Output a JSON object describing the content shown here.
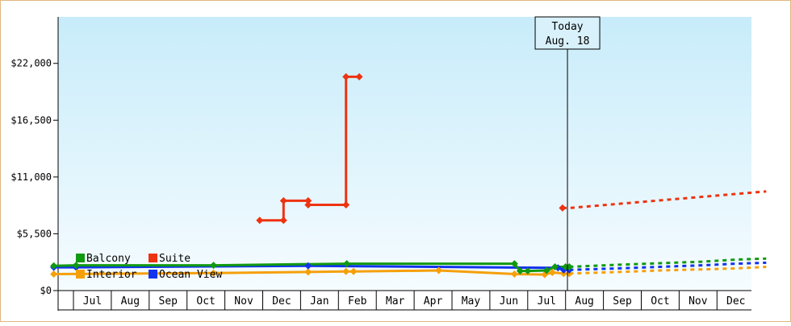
{
  "chart_data": {
    "type": "line",
    "ylim": [
      0,
      26500
    ],
    "yticks": [
      {
        "value": 0,
        "label": "$0"
      },
      {
        "value": 5500,
        "label": "$5,500"
      },
      {
        "value": 11000,
        "label": "$11,000"
      },
      {
        "value": 16500,
        "label": "$16,500"
      },
      {
        "value": 22000,
        "label": "$22,000"
      }
    ],
    "months": [
      "Jul",
      "Aug",
      "Sep",
      "Oct",
      "Nov",
      "Dec",
      "Jan",
      "Feb",
      "Mar",
      "Apr",
      "May",
      "Jun",
      "Jul",
      "Aug",
      "Sep",
      "Oct",
      "Nov",
      "Dec"
    ],
    "today_line1": "Today",
    "today_line2": "Aug. 18",
    "today_x": 14.05,
    "series": [
      {
        "name": "Balcony",
        "color": "#119911",
        "points": [
          [
            0.48,
            2400
          ],
          [
            1.07,
            2450
          ],
          [
            4.7,
            2450
          ],
          [
            8.22,
            2600
          ],
          [
            12.65,
            2600
          ],
          [
            12.8,
            1900
          ],
          [
            13.0,
            1900
          ],
          [
            13.5,
            1950
          ],
          [
            13.72,
            2300
          ],
          [
            14.0,
            2300
          ],
          [
            14.1,
            2300
          ]
        ],
        "forecast": [
          [
            14.1,
            2300
          ],
          [
            15.4,
            2500
          ],
          [
            16.5,
            2650
          ],
          [
            17.6,
            2800
          ],
          [
            18.5,
            3000
          ],
          [
            19.3,
            3100
          ]
        ]
      },
      {
        "name": "Ocean View",
        "color": "#1133ee",
        "points": [
          [
            0.48,
            2250
          ],
          [
            1.07,
            2250
          ],
          [
            7.2,
            2400
          ],
          [
            13.8,
            2200
          ],
          [
            13.95,
            2000
          ],
          [
            14.1,
            2000
          ]
        ],
        "forecast": [
          [
            14.1,
            2000
          ],
          [
            15.4,
            2150
          ],
          [
            16.5,
            2300
          ],
          [
            17.6,
            2450
          ],
          [
            18.5,
            2600
          ],
          [
            19.3,
            2700
          ]
        ]
      },
      {
        "name": "Suite",
        "color": "#ee3311",
        "points": [
          [
            5.92,
            6800
          ],
          [
            6.55,
            6800
          ],
          [
            6.55,
            8700
          ],
          [
            7.2,
            8700
          ],
          [
            7.2,
            8300
          ],
          [
            8.2,
            8300
          ],
          [
            8.2,
            20700
          ],
          [
            8.55,
            20700
          ]
        ],
        "forecast": [
          [
            13.92,
            8000
          ],
          [
            14.1,
            8000
          ],
          [
            19.3,
            9600
          ]
        ]
      },
      {
        "name": "Interior",
        "color": "#f5a00a",
        "points": [
          [
            0.48,
            1600
          ],
          [
            4.7,
            1700
          ],
          [
            7.2,
            1800
          ],
          [
            8.2,
            1850
          ],
          [
            8.4,
            1850
          ],
          [
            10.65,
            1950
          ],
          [
            12.65,
            1600
          ],
          [
            13.45,
            1550
          ],
          [
            13.65,
            1750
          ],
          [
            13.95,
            1650
          ],
          [
            14.1,
            1650
          ]
        ],
        "forecast": [
          [
            14.1,
            1650
          ],
          [
            15.4,
            1800
          ],
          [
            16.5,
            1950
          ],
          [
            17.6,
            2050
          ],
          [
            18.5,
            2150
          ],
          [
            19.3,
            2300
          ]
        ]
      }
    ],
    "legend": {
      "placement": "bottom-left",
      "items": [
        {
          "name": "Balcony",
          "color": "#119911"
        },
        {
          "name": "Suite",
          "color": "#ee3311"
        },
        {
          "name": "Interior",
          "color": "#f5a00a"
        },
        {
          "name": "Ocean View",
          "color": "#1133ee"
        }
      ]
    }
  }
}
